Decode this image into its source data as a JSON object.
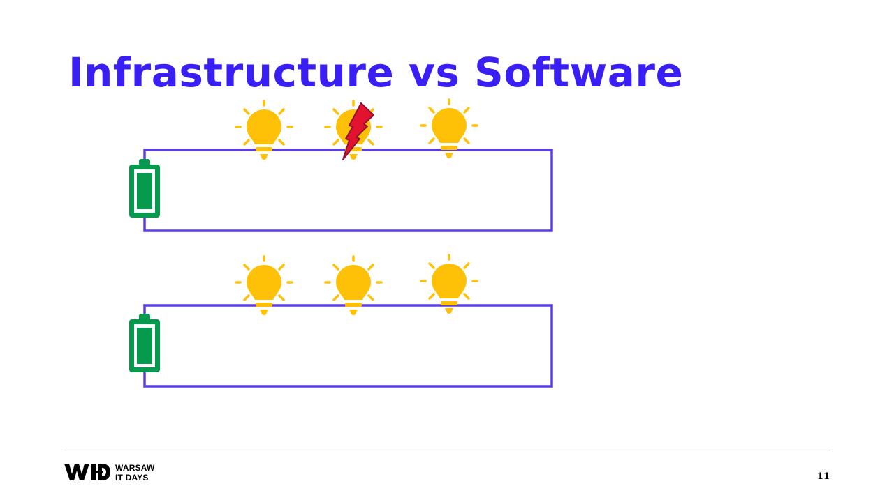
{
  "slide": {
    "title": "Infrastructure vs Software",
    "page_number": "11"
  },
  "colors": {
    "title": "#3a1ff5",
    "wire": "#5a3de6",
    "battery": "#079a4f",
    "bulb": "#ffc107",
    "lightning_fill": "#e3122f",
    "lightning_stroke": "#8e1231"
  },
  "circuits": [
    {
      "battery": "battery-icon",
      "bulbs": [
        "lightbulb-icon",
        "lightbulb-icon",
        "lightbulb-icon"
      ],
      "fault_on_bulb": 2,
      "fault_icon": "lightning-bolt-icon"
    },
    {
      "battery": "battery-icon",
      "bulbs": [
        "lightbulb-icon",
        "lightbulb-icon",
        "lightbulb-icon"
      ],
      "fault_on_bulb": null
    }
  ],
  "footer": {
    "logo_icon": "wid-logo-icon",
    "logo_line1": "WARSAW",
    "logo_line2": "IT DAYS"
  }
}
